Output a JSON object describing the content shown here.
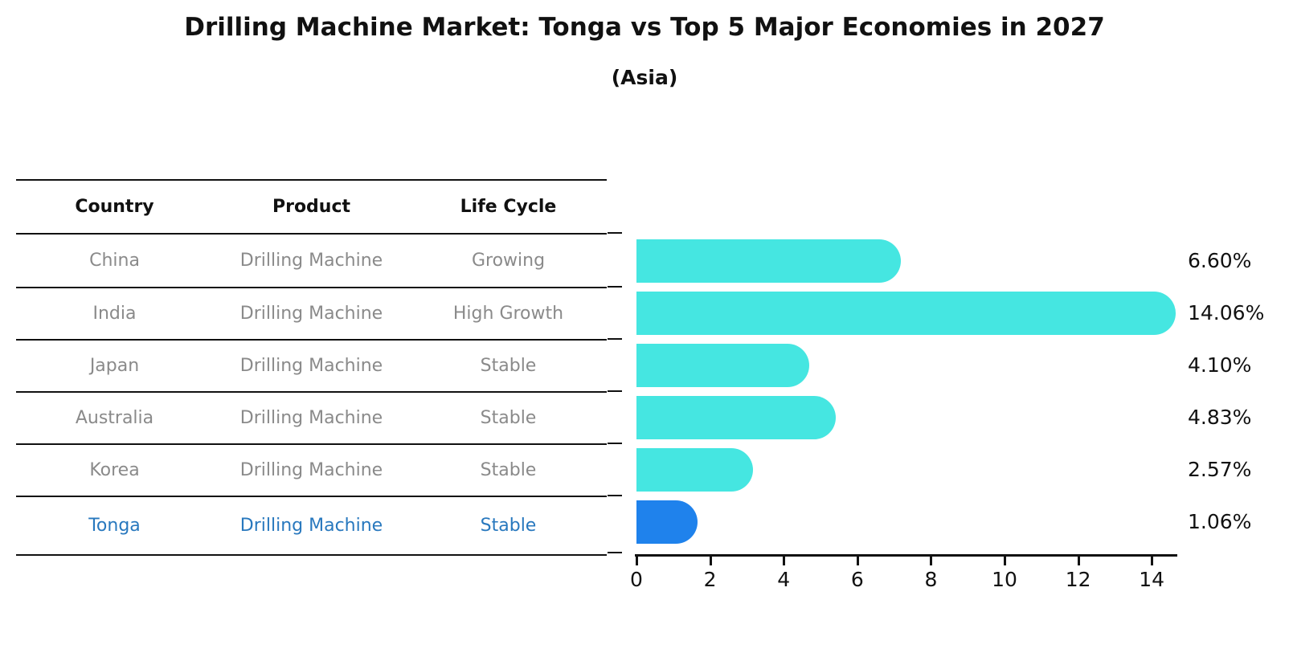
{
  "title": "Drilling Machine Market: Tonga vs Top 5 Major Economies in 2027",
  "subtitle": "(Asia)",
  "table": {
    "headers": [
      "Country",
      "Product",
      "Life Cycle"
    ],
    "rows": [
      {
        "country": "China",
        "product": "Drilling Machine",
        "life_cycle": "Growing",
        "highlight": false
      },
      {
        "country": "India",
        "product": "Drilling Machine",
        "life_cycle": "High Growth",
        "highlight": false
      },
      {
        "country": "Japan",
        "product": "Drilling Machine",
        "life_cycle": "Stable",
        "highlight": false
      },
      {
        "country": "Australia",
        "product": "Drilling Machine",
        "life_cycle": "Stable",
        "highlight": false
      },
      {
        "country": "Korea",
        "product": "Drilling Machine",
        "life_cycle": "Stable",
        "highlight": false
      },
      {
        "country": "Tonga",
        "product": "Drilling Machine",
        "life_cycle": "Stable",
        "highlight": true
      }
    ]
  },
  "chart_data": {
    "type": "bar",
    "orientation": "horizontal",
    "title": "Drilling Machine Market: Tonga vs Top 5 Major Economies in 2027",
    "subtitle": "(Asia)",
    "categories": [
      "China",
      "India",
      "Japan",
      "Australia",
      "Korea",
      "Tonga"
    ],
    "values": [
      6.6,
      14.06,
      4.1,
      4.83,
      2.57,
      1.06
    ],
    "value_labels": [
      "6.60%",
      "14.06%",
      "4.10%",
      "4.83%",
      "2.57%",
      "1.06%"
    ],
    "x_ticks": [
      0,
      2,
      4,
      6,
      8,
      10,
      12,
      14
    ],
    "xlim": [
      0,
      14.7
    ],
    "xlabel": "",
    "ylabel": "",
    "grid": false,
    "legend": "none",
    "bar_color": "#45e6e1",
    "highlight_color": "#1f82ec",
    "highlight_index": 5
  },
  "colors": {
    "background": "#ffffff",
    "text": "#111111",
    "muted_text": "#8a8a8a",
    "highlight_text": "#2878be",
    "bar": "#45e6e1",
    "highlight_bar": "#1f82ec",
    "line": "#111111"
  }
}
